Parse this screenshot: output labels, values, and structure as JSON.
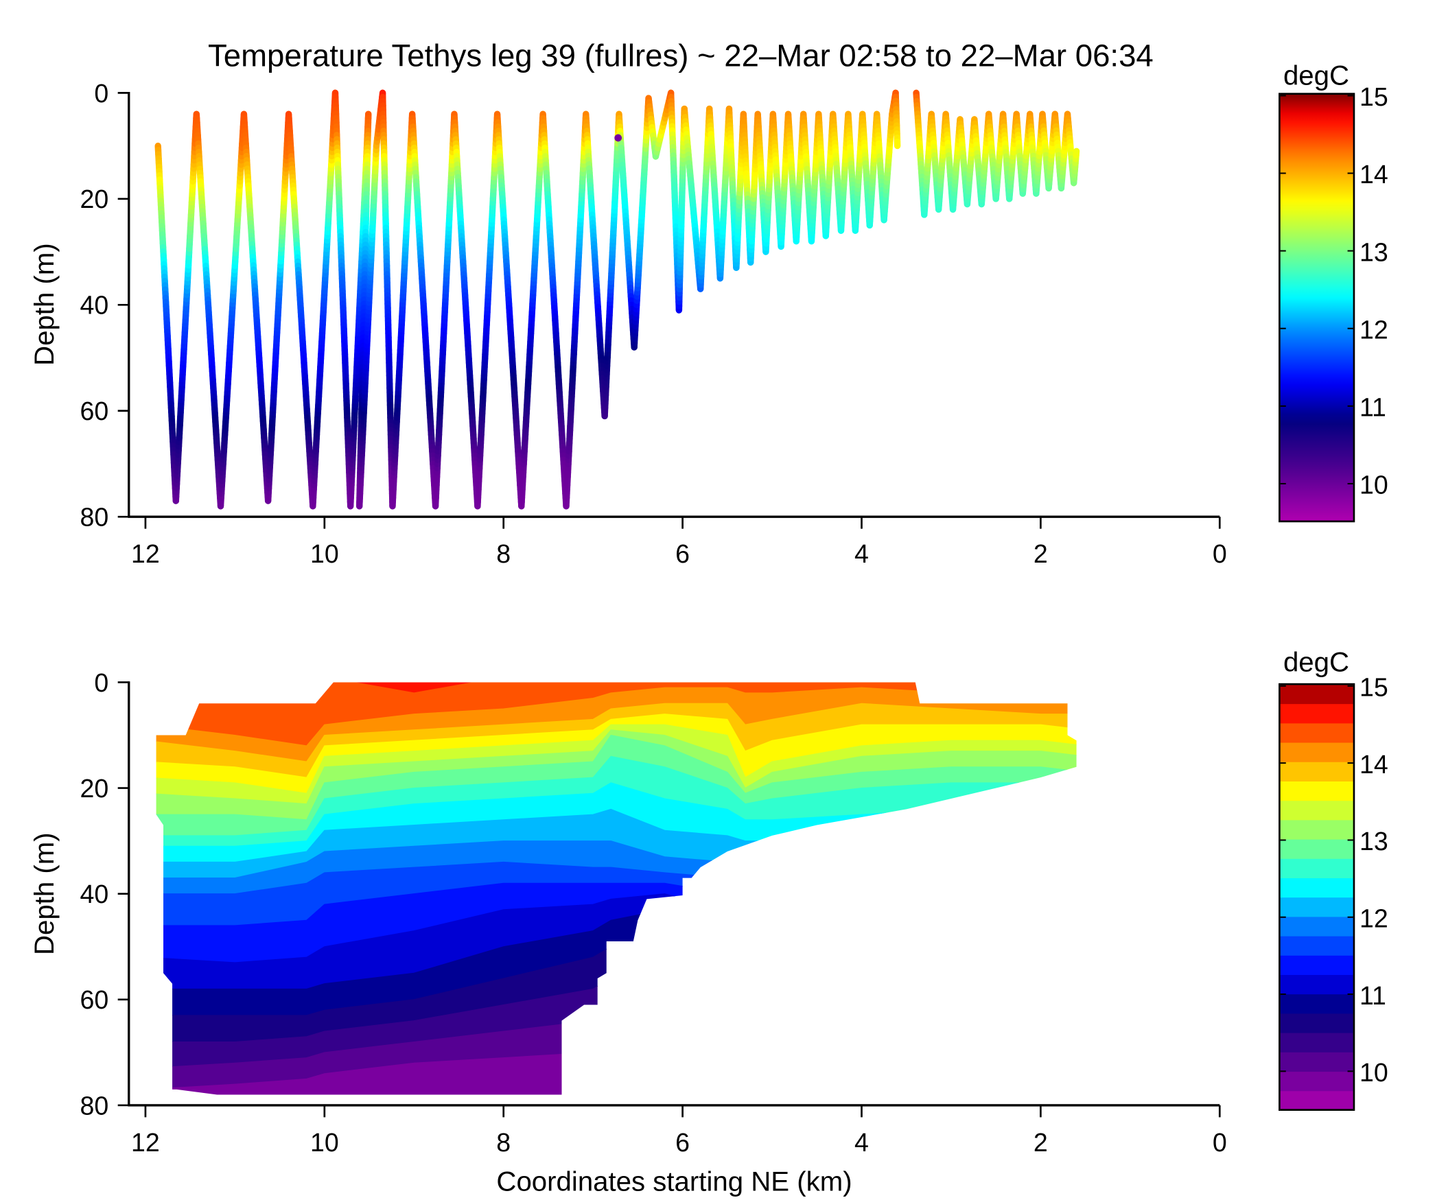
{
  "chart_data": [
    {
      "type": "scatter",
      "title": "Temperature Tethys leg 39 (fullres) ~ 22–Mar 02:58 to 22–Mar 06:34",
      "xlabel": "",
      "ylabel": "Depth (m)",
      "xlim": [
        12.2,
        0
      ],
      "ylim": [
        0,
        80
      ],
      "xticks": [
        12,
        10,
        8,
        6,
        4,
        2,
        0
      ],
      "yticks": [
        0,
        20,
        40,
        60,
        80
      ],
      "colorbar": {
        "label": "degC",
        "range": [
          9.5,
          15
        ],
        "ticks": [
          15,
          14,
          13,
          12,
          11,
          10
        ]
      },
      "color_by": "temperature from field",
      "track_segments": [
        [
          [
            11.86,
            10
          ],
          [
            11.66,
            77
          ],
          [
            11.43,
            4
          ],
          [
            11.16,
            78
          ],
          [
            10.9,
            4
          ],
          [
            10.63,
            77
          ],
          [
            10.4,
            4
          ],
          [
            10.13,
            78
          ],
          [
            9.88,
            0
          ],
          [
            9.71,
            78
          ],
          [
            9.51,
            4
          ],
          [
            9.61,
            78
          ],
          [
            9.42,
            10
          ],
          [
            9.35,
            0
          ],
          [
            9.24,
            78
          ],
          [
            9.02,
            4
          ],
          [
            8.76,
            78
          ],
          [
            8.55,
            4
          ],
          [
            8.29,
            78
          ],
          [
            8.07,
            4
          ],
          [
            7.8,
            78
          ],
          [
            7.56,
            4
          ],
          [
            7.3,
            78
          ],
          [
            7.08,
            4
          ],
          [
            6.87,
            61
          ],
          [
            6.71,
            4
          ],
          [
            6.54,
            48
          ],
          [
            6.38,
            1
          ],
          [
            6.3,
            12
          ],
          [
            6.13,
            0
          ],
          [
            6.04,
            41
          ],
          [
            5.98,
            3
          ],
          [
            5.8,
            37
          ],
          [
            5.7,
            3
          ],
          [
            5.58,
            35
          ],
          [
            5.48,
            3
          ],
          [
            5.4,
            33
          ],
          [
            5.32,
            4
          ],
          [
            5.24,
            32
          ],
          [
            5.16,
            4
          ],
          [
            5.07,
            30
          ],
          [
            4.99,
            4
          ],
          [
            4.9,
            29
          ],
          [
            4.82,
            4
          ],
          [
            4.73,
            28
          ],
          [
            4.65,
            4
          ],
          [
            4.56,
            28
          ],
          [
            4.48,
            4
          ],
          [
            4.4,
            27
          ],
          [
            4.32,
            4
          ],
          [
            4.23,
            26
          ],
          [
            4.15,
            4
          ],
          [
            4.07,
            26
          ],
          [
            3.99,
            4
          ],
          [
            3.91,
            25
          ],
          [
            3.83,
            4
          ],
          [
            3.75,
            24
          ],
          [
            3.66,
            4
          ],
          [
            3.62,
            0
          ],
          [
            3.6,
            10
          ]
        ],
        [
          [
            3.39,
            0
          ],
          [
            3.3,
            23
          ],
          [
            3.22,
            4
          ],
          [
            3.14,
            22
          ],
          [
            3.06,
            4
          ],
          [
            2.98,
            22
          ],
          [
            2.9,
            5
          ],
          [
            2.82,
            21
          ],
          [
            2.74,
            5
          ],
          [
            2.66,
            21
          ],
          [
            2.58,
            4
          ],
          [
            2.5,
            20
          ],
          [
            2.42,
            4
          ],
          [
            2.35,
            20
          ],
          [
            2.27,
            4
          ],
          [
            2.2,
            19
          ],
          [
            2.12,
            4
          ],
          [
            2.05,
            19
          ],
          [
            1.98,
            4
          ],
          [
            1.91,
            18
          ],
          [
            1.84,
            4
          ],
          [
            1.77,
            18
          ],
          [
            1.7,
            4
          ],
          [
            1.63,
            17
          ],
          [
            1.6,
            11
          ]
        ]
      ],
      "outlier_point": {
        "x": 6.72,
        "depth": 8.5,
        "temp": 9.9
      }
    },
    {
      "type": "heatmap",
      "subtype": "filled-contour",
      "title": "",
      "xlabel": "Coordinates starting NE (km)",
      "ylabel": "Depth (m)",
      "xlim": [
        12.2,
        0
      ],
      "ylim": [
        0,
        80
      ],
      "xticks": [
        12,
        10,
        8,
        6,
        4,
        2,
        0
      ],
      "yticks": [
        0,
        20,
        40,
        60,
        80
      ],
      "colorbar": {
        "label": "degC",
        "range": [
          9.5,
          15
        ],
        "ticks": [
          15,
          14,
          13,
          12,
          11,
          10
        ],
        "band_step": 0.25
      },
      "isotherm_levels": [
        14.5,
        14.25,
        14,
        13.75,
        13.5,
        13.25,
        13,
        12.75,
        12.5,
        12.25,
        12,
        11.75,
        11.5,
        11.25,
        11,
        10.75,
        10.5,
        10.25,
        10,
        9.75
      ],
      "isotherm_depth_columns": [
        {
          "x": 12.0,
          "depths": [
            -1,
            8,
            11,
            15,
            18,
            21,
            25,
            29,
            31,
            34,
            37,
            40,
            46,
            52,
            58,
            63,
            68,
            73,
            77,
            90
          ]
        },
        {
          "x": 11.0,
          "depths": [
            -1,
            10,
            13,
            16,
            19,
            22,
            25,
            29,
            31,
            34,
            37,
            40,
            46,
            53,
            58,
            63,
            68,
            72,
            76,
            90
          ]
        },
        {
          "x": 10.2,
          "depths": [
            3,
            12,
            15,
            18,
            21,
            23,
            26,
            28,
            30,
            32,
            34,
            38,
            45,
            52,
            58,
            63,
            67,
            71,
            75,
            90
          ]
        },
        {
          "x": 10.0,
          "depths": [
            -1,
            8,
            10,
            12,
            14,
            16,
            19,
            22,
            25,
            28,
            32,
            36,
            42,
            50,
            57,
            62,
            66,
            70,
            74,
            90
          ]
        },
        {
          "x": 9.0,
          "depths": [
            2,
            6,
            9,
            11,
            13,
            15,
            17,
            20,
            23,
            27,
            31,
            35,
            40,
            47,
            55,
            60,
            64,
            68,
            72,
            90
          ]
        },
        {
          "x": 8.0,
          "depths": [
            -1,
            5,
            8,
            10,
            12,
            14,
            16,
            19,
            22,
            26,
            30,
            34,
            38,
            43,
            50,
            56,
            61,
            66,
            71,
            90
          ]
        },
        {
          "x": 7.0,
          "depths": [
            -1,
            3,
            7,
            9,
            11,
            13,
            15,
            18,
            21,
            25,
            30,
            35,
            38,
            42,
            47,
            52,
            58,
            64,
            70,
            90
          ]
        },
        {
          "x": 6.8,
          "depths": [
            -1,
            2,
            5,
            7,
            8,
            9,
            10,
            14,
            19,
            24,
            30,
            35,
            38,
            41,
            45,
            50,
            56,
            62,
            68,
            90
          ]
        },
        {
          "x": 6.2,
          "depths": [
            -1,
            1,
            4,
            6,
            8,
            10,
            12,
            16,
            22,
            28,
            33,
            36,
            38,
            40,
            43,
            48,
            55,
            62,
            68,
            90
          ]
        },
        {
          "x": 5.5,
          "depths": [
            -1,
            1,
            4,
            7,
            10,
            14,
            17,
            20,
            24,
            29,
            34,
            37,
            40,
            43,
            46,
            50,
            56,
            62,
            68,
            90
          ]
        },
        {
          "x": 5.3,
          "depths": [
            -1,
            2,
            8,
            13,
            18,
            20,
            21,
            23,
            26,
            30,
            35,
            38,
            41,
            44,
            47,
            50,
            56,
            62,
            68,
            90
          ]
        },
        {
          "x": 5.0,
          "depths": [
            -1,
            2,
            7,
            11,
            15,
            17,
            19,
            22,
            26,
            30,
            35,
            38,
            41,
            44,
            47,
            50,
            56,
            62,
            68,
            90
          ]
        },
        {
          "x": 4.0,
          "depths": [
            -1,
            1,
            4,
            8,
            12,
            14,
            17,
            20,
            25,
            30,
            35,
            38,
            41,
            44,
            47,
            50,
            56,
            62,
            68,
            90
          ]
        },
        {
          "x": 3.0,
          "depths": [
            -1,
            2,
            5,
            8,
            11,
            13,
            16,
            19,
            24,
            30,
            35,
            38,
            41,
            44,
            47,
            50,
            56,
            62,
            68,
            90
          ]
        },
        {
          "x": 2.0,
          "depths": [
            -1,
            2,
            6,
            8,
            11,
            13,
            16,
            19,
            24,
            30,
            35,
            38,
            41,
            44,
            47,
            50,
            56,
            62,
            68,
            90
          ]
        },
        {
          "x": 1.5,
          "depths": [
            -1,
            2,
            6,
            9,
            12,
            14,
            17,
            20,
            25,
            30,
            35,
            38,
            41,
            44,
            47,
            50,
            56,
            62,
            68,
            90
          ]
        }
      ],
      "data_boundary": [
        [
          11.88,
          10
        ],
        [
          11.55,
          10
        ],
        [
          11.4,
          4
        ],
        [
          10.1,
          4
        ],
        [
          9.9,
          0
        ],
        [
          3.4,
          0
        ],
        [
          3.35,
          4
        ],
        [
          1.7,
          4
        ],
        [
          1.7,
          10
        ],
        [
          1.6,
          11
        ],
        [
          1.6,
          16
        ],
        [
          2.0,
          18
        ],
        [
          2.5,
          20
        ],
        [
          3.0,
          22
        ],
        [
          3.5,
          24
        ],
        [
          4.0,
          25.5
        ],
        [
          4.5,
          27
        ],
        [
          5.0,
          29
        ],
        [
          5.5,
          32
        ],
        [
          5.8,
          35
        ],
        [
          5.9,
          37
        ],
        [
          6.0,
          37
        ],
        [
          6.0,
          40.3
        ],
        [
          6.4,
          41
        ],
        [
          6.5,
          45
        ],
        [
          6.55,
          49
        ],
        [
          6.85,
          49
        ],
        [
          6.85,
          55
        ],
        [
          6.95,
          56
        ],
        [
          6.95,
          61
        ],
        [
          7.1,
          61
        ],
        [
          7.35,
          64
        ],
        [
          7.35,
          78
        ],
        [
          11.2,
          78
        ],
        [
          11.65,
          77
        ],
        [
          11.7,
          77
        ],
        [
          11.7,
          57
        ],
        [
          11.8,
          55
        ],
        [
          11.8,
          27
        ],
        [
          11.88,
          25
        ]
      ]
    }
  ]
}
